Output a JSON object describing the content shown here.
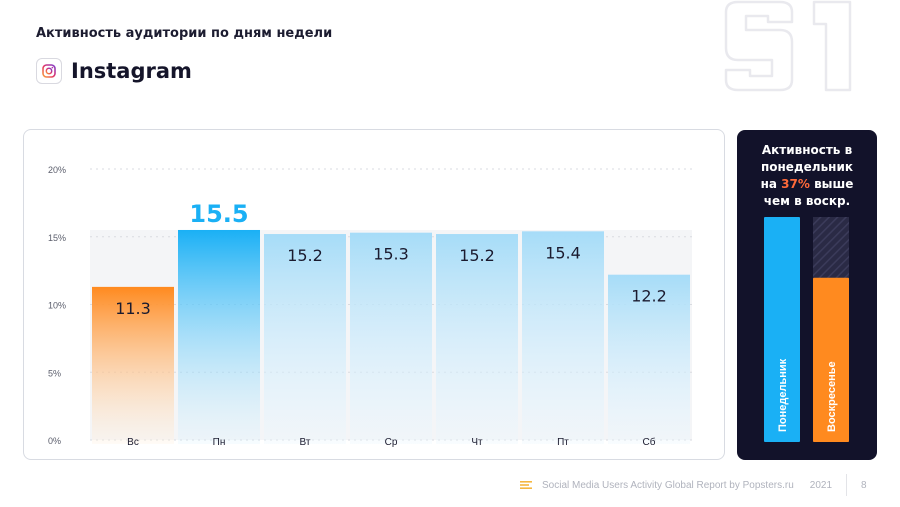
{
  "header": {
    "subtitle": "Активность аудитории по дням недели",
    "platform": "Instagram"
  },
  "side_panel": {
    "line1": "Активность в",
    "line2": "понедельник",
    "line3_pre": "на ",
    "line3_pct": "37%",
    "line3_post": " выше",
    "line4": "чем в воскр.",
    "bars": [
      {
        "label": "Понедельник",
        "color": "#1ab0f5"
      },
      {
        "label": "Воскресенье",
        "color": "#ff8a1f"
      }
    ],
    "ratio_sunday_to_monday": 0.73
  },
  "chart_data": {
    "type": "bar",
    "categories": [
      "Вс",
      "Пн",
      "Вт",
      "Ср",
      "Чт",
      "Пт",
      "Сб"
    ],
    "values": [
      11.3,
      15.5,
      15.2,
      15.3,
      15.2,
      15.4,
      12.2
    ],
    "value_labels": [
      "11.3",
      "15.5",
      "15.2",
      "15.3",
      "15.2",
      "15.4",
      "12.2"
    ],
    "highlight": {
      "Вс": "#ff8a1f",
      "Пн": "#1ab0f5"
    },
    "ytick_labels": [
      "0%",
      "5%",
      "10%",
      "15%",
      "20%"
    ],
    "ytick_values": [
      0,
      5,
      10,
      15,
      20
    ],
    "ylim": [
      0,
      20
    ],
    "xlabel": "",
    "ylabel": "",
    "grid": true
  },
  "footer": {
    "report": "Social Media Users Activity Global Report by Popsters.ru",
    "year": "2021",
    "page": "8"
  },
  "colors": {
    "accent_blue": "#1ab0f5",
    "accent_orange": "#ff8a1f",
    "dark_panel": "#12122a"
  }
}
